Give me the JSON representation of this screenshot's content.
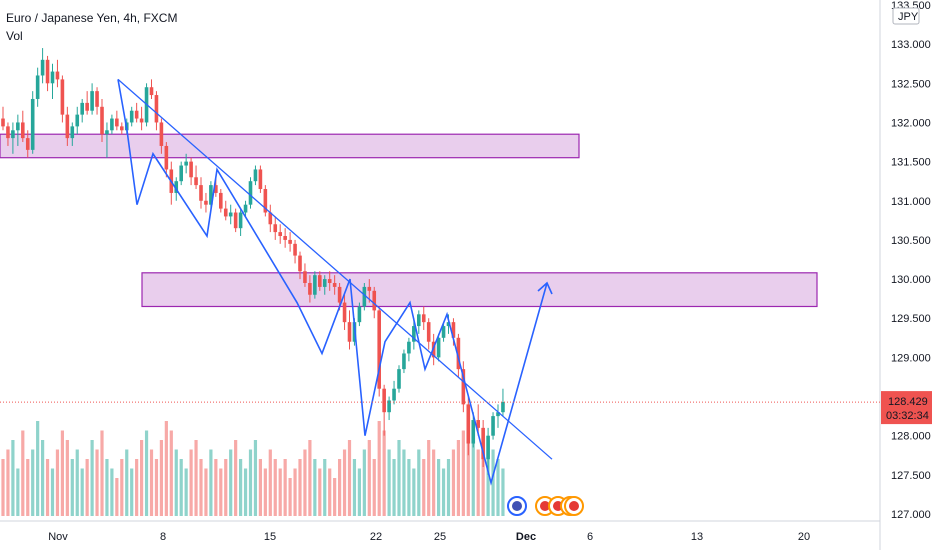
{
  "legend": {
    "symbol_line": "Euro / Japanese Yen, 4h, FXCM",
    "volume_label": "Vol"
  },
  "currency_badge": "JPY",
  "price_tag": {
    "price": "128.429",
    "countdown": "03:32:34",
    "color": "#ef5350"
  },
  "colors": {
    "up_candle": "#26a69a",
    "down_candle": "#ef5350",
    "volume_up": "#8fd3cb",
    "volume_down": "#f7a9a7",
    "trend_lines": "#2962ff",
    "zones_fill": "#e1bee7",
    "zones_stroke": "#9c27b0"
  },
  "event_icons": [
    "flag-event-icon",
    "flag-event-icon",
    "flag-event-icon",
    "flag-event-icon",
    "flag-event-icon"
  ],
  "chart_data": {
    "type": "candlestick",
    "title": "",
    "xlabel": "",
    "ylabel": "",
    "x_ticks": [
      "Nov",
      "8",
      "15",
      "22",
      "25",
      "Dec",
      "6",
      "13",
      "20"
    ],
    "y_ticks": [
      "127.000",
      "127.500",
      "128.000",
      "128.500",
      "129.000",
      "129.500",
      "130.000",
      "130.500",
      "131.000",
      "131.500",
      "132.000",
      "132.500",
      "133.000",
      "133.500"
    ],
    "ylim": [
      127.0,
      133.5
    ],
    "last_price": 128.429,
    "candles": [
      [
        132.05,
        132.2,
        131.9,
        131.95
      ],
      [
        131.95,
        132.0,
        131.7,
        131.8
      ],
      [
        131.8,
        132.0,
        131.6,
        131.9
      ],
      [
        131.9,
        132.1,
        131.7,
        132.0
      ],
      [
        132.0,
        132.15,
        131.75,
        131.8
      ],
      [
        131.8,
        131.9,
        131.55,
        131.65
      ],
      [
        131.65,
        132.4,
        131.6,
        132.3
      ],
      [
        132.3,
        132.7,
        132.2,
        132.6
      ],
      [
        132.6,
        132.95,
        132.5,
        132.8
      ],
      [
        132.8,
        132.85,
        132.4,
        132.5
      ],
      [
        132.5,
        132.75,
        132.3,
        132.65
      ],
      [
        132.65,
        132.8,
        132.45,
        132.55
      ],
      [
        132.55,
        132.6,
        132.0,
        132.1
      ],
      [
        132.1,
        132.2,
        131.7,
        131.8
      ],
      [
        131.8,
        132.0,
        131.7,
        131.95
      ],
      [
        131.95,
        132.2,
        131.85,
        132.1
      ],
      [
        132.1,
        132.3,
        132.0,
        132.25
      ],
      [
        132.25,
        132.4,
        132.1,
        132.15
      ],
      [
        132.15,
        132.5,
        132.1,
        132.4
      ],
      [
        132.4,
        132.45,
        132.1,
        132.2
      ],
      [
        132.2,
        132.3,
        131.75,
        131.85
      ],
      [
        131.85,
        132.0,
        131.55,
        131.9
      ],
      [
        131.9,
        132.1,
        131.85,
        132.05
      ],
      [
        132.05,
        132.15,
        131.9,
        131.95
      ],
      [
        131.95,
        132.0,
        131.85,
        131.9
      ],
      [
        131.9,
        132.05,
        131.85,
        132.0
      ],
      [
        132.0,
        132.2,
        131.95,
        132.15
      ],
      [
        132.15,
        132.25,
        132.0,
        132.05
      ],
      [
        132.05,
        132.2,
        131.9,
        132.0
      ],
      [
        132.0,
        132.5,
        131.95,
        132.45
      ],
      [
        132.45,
        132.55,
        132.3,
        132.35
      ],
      [
        132.35,
        132.4,
        131.9,
        132.0
      ],
      [
        132.0,
        132.05,
        131.6,
        131.7
      ],
      [
        131.7,
        131.75,
        131.3,
        131.4
      ],
      [
        131.4,
        131.5,
        130.95,
        131.1
      ],
      [
        131.1,
        131.3,
        131.0,
        131.25
      ],
      [
        131.25,
        131.5,
        131.2,
        131.45
      ],
      [
        131.45,
        131.6,
        131.35,
        131.5
      ],
      [
        131.5,
        131.55,
        131.2,
        131.3
      ],
      [
        131.3,
        131.45,
        131.15,
        131.2
      ],
      [
        131.2,
        131.3,
        130.9,
        131.0
      ],
      [
        131.0,
        131.1,
        130.85,
        130.95
      ],
      [
        130.95,
        131.25,
        130.9,
        131.2
      ],
      [
        131.2,
        131.3,
        131.05,
        131.1
      ],
      [
        131.1,
        131.15,
        130.85,
        130.9
      ],
      [
        130.9,
        131.0,
        130.75,
        130.8
      ],
      [
        130.8,
        130.95,
        130.7,
        130.85
      ],
      [
        130.85,
        130.9,
        130.6,
        130.65
      ],
      [
        130.65,
        130.9,
        130.55,
        130.85
      ],
      [
        130.85,
        131.0,
        130.8,
        130.95
      ],
      [
        130.95,
        131.3,
        130.9,
        131.25
      ],
      [
        131.25,
        131.45,
        131.2,
        131.4
      ],
      [
        131.4,
        131.45,
        131.1,
        131.15
      ],
      [
        131.15,
        131.2,
        130.8,
        130.85
      ],
      [
        130.85,
        130.95,
        130.6,
        130.7
      ],
      [
        130.7,
        130.8,
        130.5,
        130.6
      ],
      [
        130.6,
        130.7,
        130.45,
        130.55
      ],
      [
        130.55,
        130.65,
        130.4,
        130.5
      ],
      [
        130.5,
        130.6,
        130.35,
        130.45
      ],
      [
        130.45,
        130.5,
        130.2,
        130.3
      ],
      [
        130.3,
        130.35,
        130.0,
        130.1
      ],
      [
        130.1,
        130.2,
        129.9,
        129.95
      ],
      [
        129.95,
        130.05,
        129.7,
        129.8
      ],
      [
        129.8,
        130.1,
        129.75,
        130.05
      ],
      [
        130.05,
        130.1,
        129.85,
        129.9
      ],
      [
        129.9,
        130.05,
        129.8,
        130.0
      ],
      [
        130.0,
        130.1,
        129.85,
        129.95
      ],
      [
        129.95,
        130.05,
        129.8,
        129.9
      ],
      [
        129.9,
        129.95,
        129.6,
        129.7
      ],
      [
        129.7,
        129.8,
        129.35,
        129.45
      ],
      [
        129.45,
        129.6,
        129.1,
        129.2
      ],
      [
        129.2,
        129.5,
        129.15,
        129.45
      ],
      [
        129.45,
        129.7,
        129.4,
        129.65
      ],
      [
        129.65,
        129.95,
        129.6,
        129.9
      ],
      [
        129.9,
        130.0,
        129.7,
        129.85
      ],
      [
        129.85,
        129.9,
        129.5,
        129.6
      ],
      [
        129.6,
        129.65,
        128.5,
        128.6
      ],
      [
        128.6,
        128.65,
        128.0,
        128.3
      ],
      [
        128.3,
        128.5,
        128.2,
        128.45
      ],
      [
        128.45,
        128.7,
        128.4,
        128.6
      ],
      [
        128.6,
        128.9,
        128.55,
        128.85
      ],
      [
        128.85,
        129.1,
        128.8,
        129.05
      ],
      [
        129.05,
        129.25,
        128.95,
        129.2
      ],
      [
        129.2,
        129.5,
        129.1,
        129.4
      ],
      [
        129.4,
        129.6,
        129.3,
        129.55
      ],
      [
        129.55,
        129.65,
        129.35,
        129.45
      ],
      [
        129.45,
        129.5,
        129.1,
        129.2
      ],
      [
        129.2,
        129.3,
        128.9,
        129.0
      ],
      [
        129.0,
        129.3,
        128.95,
        129.25
      ],
      [
        129.25,
        129.45,
        129.2,
        129.4
      ],
      [
        129.4,
        129.55,
        129.3,
        129.45
      ],
      [
        129.45,
        129.5,
        129.15,
        129.25
      ],
      [
        129.25,
        129.3,
        128.75,
        128.85
      ],
      [
        128.85,
        128.95,
        128.3,
        128.4
      ],
      [
        128.4,
        128.5,
        127.75,
        127.9
      ],
      [
        127.9,
        128.3,
        127.85,
        128.2
      ],
      [
        128.2,
        128.4,
        128.0,
        128.1
      ],
      [
        128.1,
        128.2,
        127.6,
        127.7
      ],
      [
        127.7,
        128.1,
        127.5,
        128.0
      ],
      [
        128.0,
        128.3,
        127.95,
        128.25
      ],
      [
        128.25,
        128.4,
        128.1,
        128.3
      ],
      [
        128.3,
        128.6,
        128.25,
        128.43
      ]
    ],
    "volumes": [
      6,
      7,
      8,
      5,
      9,
      6,
      7,
      10,
      8,
      6,
      5,
      7,
      9,
      8,
      6,
      7,
      5,
      6,
      8,
      7,
      9,
      6,
      5,
      4,
      6,
      7,
      5,
      6,
      8,
      9,
      7,
      6,
      8,
      10,
      9,
      7,
      6,
      5,
      7,
      8,
      6,
      5,
      7,
      6,
      5,
      6,
      7,
      8,
      6,
      5,
      7,
      8,
      6,
      5,
      7,
      6,
      5,
      6,
      4,
      5,
      6,
      7,
      8,
      6,
      5,
      6,
      5,
      4,
      6,
      7,
      8,
      6,
      5,
      7,
      8,
      6,
      10,
      9,
      7,
      6,
      8,
      7,
      6,
      5,
      7,
      6,
      8,
      7,
      6,
      5,
      6,
      7,
      8,
      9,
      10,
      8,
      7,
      9,
      8,
      7,
      6,
      5
    ],
    "zones": [
      [
        131.55,
        131.85
      ],
      [
        129.65,
        130.08
      ]
    ],
    "wave_path": [
      [
        132.55,
        0
      ],
      [
        131.9,
        0
      ],
      [
        130.95,
        0
      ],
      [
        131.6,
        0
      ],
      [
        130.55,
        0
      ],
      [
        131.4,
        0
      ],
      [
        129.7,
        0
      ],
      [
        129.05,
        0
      ],
      [
        130.0,
        0
      ],
      [
        128.0,
        0
      ],
      [
        129.2,
        0
      ],
      [
        129.7,
        0
      ],
      [
        128.85,
        0
      ],
      [
        129.55,
        0
      ],
      [
        127.4,
        0
      ],
      [
        129.95,
        0
      ]
    ],
    "trend_line": [
      [
        132.55,
        0
      ],
      [
        127.7,
        0
      ]
    ]
  }
}
